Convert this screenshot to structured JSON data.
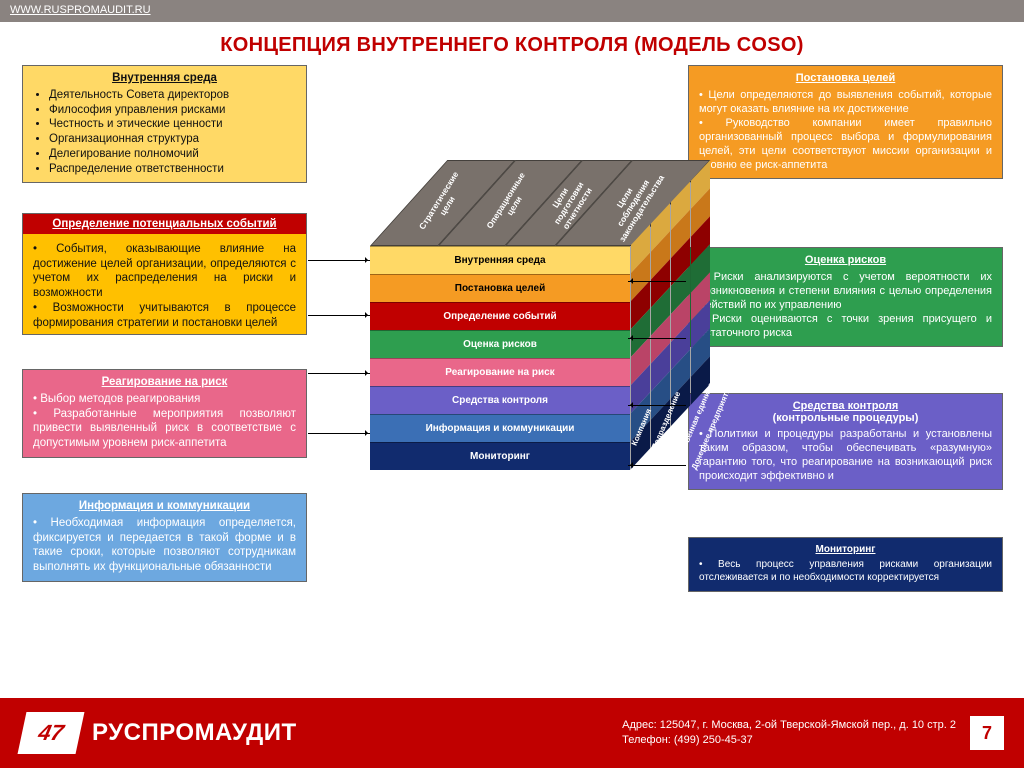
{
  "url": "WWW.RUSPROMAUDIT.RU",
  "title": "КОНЦЕПЦИЯ ВНУТРЕННЕГО КОНТРОЛЯ (МОДЕЛЬ COSO)",
  "colors": {
    "accent": "#c00000",
    "topbar": "#8a8380"
  },
  "boxes": {
    "env": {
      "title": "Внутренняя среда",
      "bg": "#ffd966",
      "fg": "#111",
      "items": [
        "Деятельность Совета директоров",
        "Философия управления рисками",
        "Честность и этические ценности",
        "Организационная структура",
        "Делегирование полномочий",
        "Распределение ответственности"
      ]
    },
    "events": {
      "title": "Определение потенциальных событий",
      "title_bg": "#c00000",
      "title_fg": "#fff",
      "bg": "#ffc000",
      "fg": "#111",
      "paras": [
        "• События, оказывающие влияние на достижение целей организации, определяются с учетом их распределения на риски и возможности",
        "• Возможности учитываются в процессе формирования стратегии и постановки целей"
      ]
    },
    "response": {
      "title": "Реагирование на риск",
      "bg": "#e9678a",
      "fg": "#fff",
      "paras": [
        "•  Выбор методов реагирования",
        "• Разработанные мероприятия позволяют привести выявленный риск в соответствие с допустимым уровнем риск-аппетита"
      ]
    },
    "info": {
      "title": "Информация и коммуникации",
      "bg": "#6da8e0",
      "fg": "#fff",
      "paras": [
        "• Необходимая информация определяется, фиксируется и передается в такой форме и в такие сроки, которые позволяют сотрудникам выполнять их функциональные обязанности"
      ]
    },
    "obj": {
      "title": "Постановка целей",
      "bg": "#f59b23",
      "fg": "#fff",
      "paras": [
        "• Цели определяются до выявления событий, которые могут оказать влияние на их достижение",
        "• Руководство компании имеет правильно организованный процесс выбора и формулирования целей, эти цели соответствуют миссии организации и уровню ее риск-аппетита"
      ]
    },
    "risk": {
      "title": "Оценка рисков",
      "bg": "#2e9e4f",
      "fg": "#fff",
      "paras": [
        "• Риски анализируются с учетом вероятности их возникновения и степени влияния с целью определения действий по их управлению",
        "• Риски оцениваются с точки зрения присущего и остаточного риска"
      ]
    },
    "ctrl": {
      "title": "Средства контроля",
      "subtitle": "(контрольные процедуры)",
      "bg": "#6b5fc7",
      "fg": "#fff",
      "paras": [
        "• Политики и процедуры разработаны и установлены таким образом, чтобы обеспечивать «разумную» гарантию того, что реагирование на возникающий риск происходит эффективно и"
      ]
    },
    "mon": {
      "title": "Мониторинг",
      "bg": "#112b6e",
      "fg": "#fff",
      "paras": [
        "• Весь процесс управления рисками организации отслеживается и по необходимости корректируется"
      ]
    }
  },
  "cube": {
    "top_bg": "#79716b",
    "top": [
      "Стратегические\\nцели",
      "Операционные\\nцели",
      "Цели\\nподготовки\\nотчетности",
      "Цели\\nсоблюдения\\nзаконодательства"
    ],
    "side_labels": [
      "Компания",
      "Подразделение",
      "Хозяйственная единица",
      "Дочернее предприятие"
    ],
    "rows": [
      {
        "label": "Внутренняя среда",
        "bg": "#ffd966",
        "fg": "#000",
        "side": "#dba93f"
      },
      {
        "label": "Постановка целей",
        "bg": "#f59b23",
        "fg": "#000",
        "side": "#c9781a"
      },
      {
        "label": "Определение событий",
        "bg": "#c00000",
        "fg": "#fff",
        "side": "#8e0000"
      },
      {
        "label": "Оценка рисков",
        "bg": "#2e9e4f",
        "fg": "#fff",
        "side": "#1f6d36"
      },
      {
        "label": "Реагирование на риск",
        "bg": "#e9678a",
        "fg": "#fff",
        "side": "#ba4467"
      },
      {
        "label": "Средства контроля",
        "bg": "#6b5fc7",
        "fg": "#fff",
        "side": "#4a3f9a"
      },
      {
        "label": "Информация и коммуникации",
        "bg": "#3b6fb5",
        "fg": "#fff",
        "side": "#274e85"
      },
      {
        "label": "Мониторинг",
        "bg": "#112b6e",
        "fg": "#fff",
        "side": "#0a1a48"
      }
    ]
  },
  "footer": {
    "logo_text": "47",
    "company": "РУСПРОМАУДИТ",
    "address": "Адрес: 125047, г. Москва, 2-ой Тверской-Ямской пер., д. 10 стр. 2",
    "phone": "Телефон: (499) 250-45-37",
    "page": "7"
  }
}
